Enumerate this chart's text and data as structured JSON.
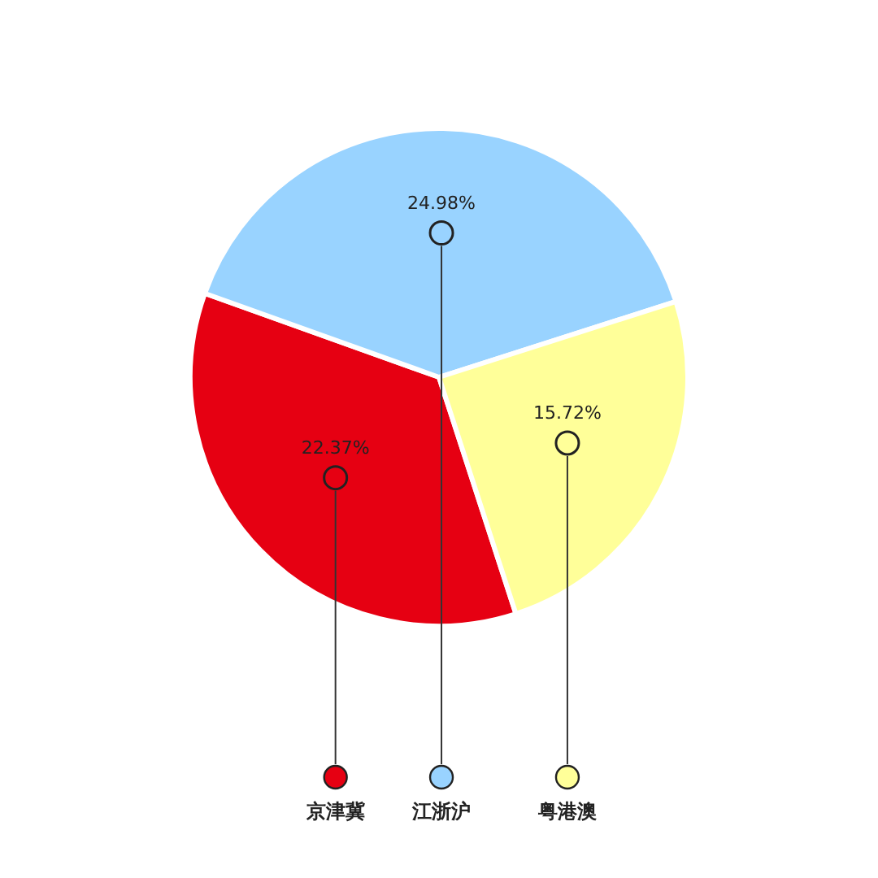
{
  "chart_data": {
    "type": "pie",
    "categories": [
      "京津冀",
      "江浙沪",
      "粤港澳"
    ],
    "values": [
      22.37,
      24.98,
      15.72
    ],
    "value_labels": [
      "22.37%",
      "24.98%",
      "15.72%"
    ],
    "colors": [
      "#e60012",
      "#99d3ff",
      "#ffff99"
    ],
    "legend": "bottom"
  }
}
